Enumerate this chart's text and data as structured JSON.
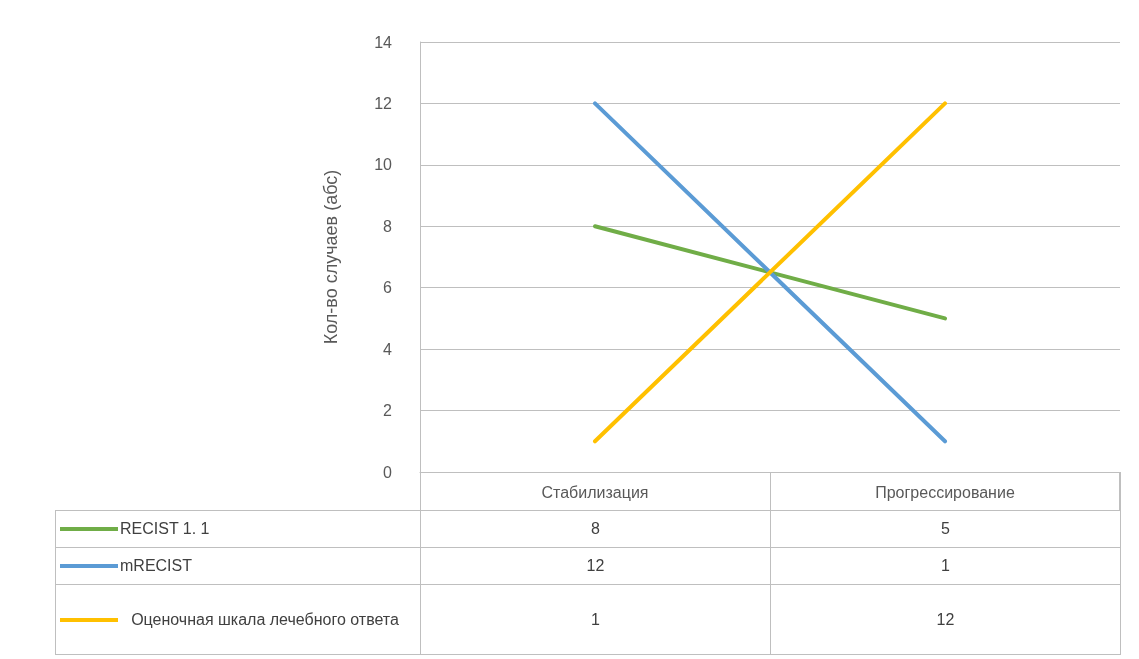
{
  "chart_data": {
    "type": "line",
    "ylabel": "Кол-во случаев (абс)",
    "categories": [
      "Стабилизация",
      "Прогрессирование"
    ],
    "series": [
      {
        "name": "RECIST 1. 1",
        "color": "#70ad47",
        "values": [
          8,
          5
        ]
      },
      {
        "name": "mRECIST",
        "color": "#5b9bd5",
        "values": [
          12,
          1
        ]
      },
      {
        "name": "Оценочная шкала лечебного ответа",
        "color": "#ffc000",
        "values": [
          1,
          12
        ]
      }
    ],
    "ylim": [
      0,
      14
    ],
    "yticks": [
      0,
      2,
      4,
      6,
      8,
      10,
      12,
      14
    ],
    "grid": "y",
    "legend": "bottom left",
    "data_labels": true,
    "marker": "none",
    "line_style": "solid"
  }
}
